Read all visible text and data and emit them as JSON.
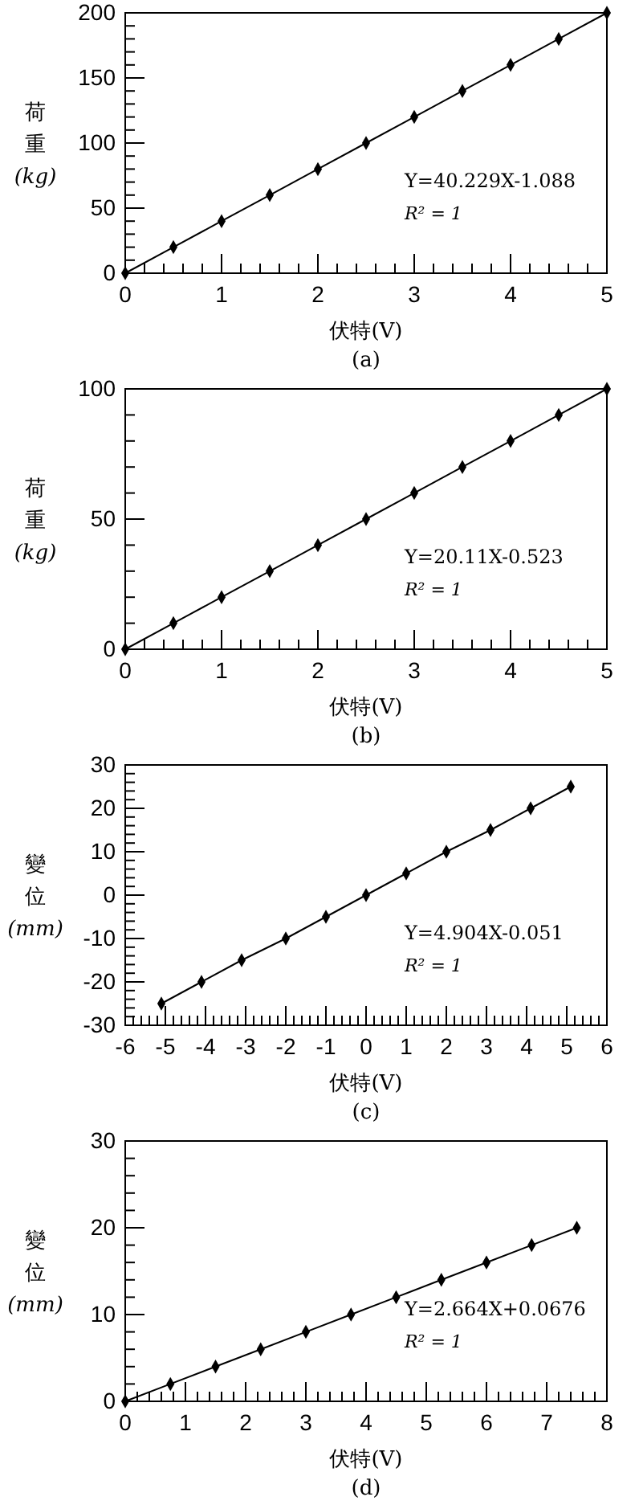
{
  "chart_data": [
    {
      "type": "line",
      "title": "(a)",
      "xlabel": "伏特(V)",
      "ylabel": "荷重(kg)",
      "marker": "diamond",
      "line_style": "solid",
      "annotations": [
        "Y=40.229X-1.088",
        "R² = 1"
      ],
      "xlim": [
        0,
        5
      ],
      "ylim": [
        0,
        200
      ],
      "xticks": [
        0,
        {
          "value": 0.2,
          "label": null
        },
        {
          "value": 0.4,
          "label": null
        },
        {
          "value": 0.6,
          "label": null
        },
        {
          "value": 0.8,
          "label": null
        },
        1,
        {
          "value": 1.2,
          "label": null
        },
        {
          "value": 1.4,
          "label": null
        },
        {
          "value": 1.6,
          "label": null
        },
        {
          "value": 1.8,
          "label": null
        },
        2,
        {
          "value": 2.2,
          "label": null
        },
        {
          "value": 2.4,
          "label": null
        },
        {
          "value": 2.6,
          "label": null
        },
        {
          "value": 2.8,
          "label": null
        },
        3,
        {
          "value": 3.2,
          "label": null
        },
        {
          "value": 3.4,
          "label": null
        },
        {
          "value": 3.6,
          "label": null
        },
        {
          "value": 3.8,
          "label": null
        },
        4,
        {
          "value": 4.2,
          "label": null
        },
        {
          "value": 4.4,
          "label": null
        },
        {
          "value": 4.6,
          "label": null
        },
        {
          "value": 4.8,
          "label": null
        },
        5
      ],
      "yticks": [
        0,
        {
          "value": 10,
          "label": null
        },
        {
          "value": 20,
          "label": null
        },
        {
          "value": 30,
          "label": null
        },
        {
          "value": 40,
          "label": null
        },
        50,
        {
          "value": 60,
          "label": null
        },
        {
          "value": 70,
          "label": null
        },
        {
          "value": 80,
          "label": null
        },
        {
          "value": 90,
          "label": null
        },
        100,
        {
          "value": 110,
          "label": null
        },
        {
          "value": 120,
          "label": null
        },
        {
          "value": 130,
          "label": null
        },
        {
          "value": 140,
          "label": null
        },
        150,
        {
          "value": 160,
          "label": null
        },
        {
          "value": 170,
          "label": null
        },
        {
          "value": 180,
          "label": null
        },
        {
          "value": 190,
          "label": null
        },
        200
      ],
      "series": [
        {
          "color": "#000000",
          "x": [
            0,
            0.5,
            1,
            1.5,
            2,
            2.5,
            3,
            3.5,
            4,
            4.5,
            5
          ],
          "values": [
            0,
            20,
            40,
            60,
            80,
            100,
            120,
            140,
            160,
            180,
            200
          ]
        }
      ]
    },
    {
      "type": "line",
      "title": "(b)",
      "xlabel": "伏特(V)",
      "ylabel": "荷重(kg)",
      "marker": "diamond",
      "line_style": "solid",
      "annotations": [
        "Y=20.11X-0.523",
        "R² = 1"
      ],
      "xlim": [
        0,
        5
      ],
      "ylim": [
        0,
        100
      ],
      "xticks": [
        0,
        {
          "value": 0.2,
          "label": null
        },
        {
          "value": 0.4,
          "label": null
        },
        {
          "value": 0.6,
          "label": null
        },
        {
          "value": 0.8,
          "label": null
        },
        1,
        {
          "value": 1.2,
          "label": null
        },
        {
          "value": 1.4,
          "label": null
        },
        {
          "value": 1.6,
          "label": null
        },
        {
          "value": 1.8,
          "label": null
        },
        2,
        {
          "value": 2.2,
          "label": null
        },
        {
          "value": 2.4,
          "label": null
        },
        {
          "value": 2.6,
          "label": null
        },
        {
          "value": 2.8,
          "label": null
        },
        3,
        {
          "value": 3.2,
          "label": null
        },
        {
          "value": 3.4,
          "label": null
        },
        {
          "value": 3.6,
          "label": null
        },
        {
          "value": 3.8,
          "label": null
        },
        4,
        {
          "value": 4.2,
          "label": null
        },
        {
          "value": 4.4,
          "label": null
        },
        {
          "value": 4.6,
          "label": null
        },
        {
          "value": 4.8,
          "label": null
        },
        5
      ],
      "yticks": [
        0,
        {
          "value": 10,
          "label": null
        },
        {
          "value": 20,
          "label": null
        },
        {
          "value": 30,
          "label": null
        },
        {
          "value": 40,
          "label": null
        },
        50,
        {
          "value": 60,
          "label": null
        },
        {
          "value": 70,
          "label": null
        },
        {
          "value": 80,
          "label": null
        },
        {
          "value": 90,
          "label": null
        },
        100
      ],
      "series": [
        {
          "color": "#000000",
          "x": [
            0,
            0.5,
            1,
            1.5,
            2,
            2.5,
            3,
            3.5,
            4,
            4.5,
            5
          ],
          "values": [
            0,
            10,
            20,
            30,
            40,
            50,
            60,
            70,
            80,
            90,
            100
          ]
        }
      ]
    },
    {
      "type": "line",
      "title": "(c)",
      "xlabel": "伏特(V)",
      "ylabel": "變位(mm)",
      "marker": "diamond",
      "line_style": "solid",
      "annotations": [
        "Y=4.904X-0.051",
        "R² = 1"
      ],
      "xlim": [
        -6,
        6
      ],
      "ylim": [
        -30,
        30
      ],
      "xticks": [
        -6,
        {
          "value": -5.8,
          "label": null
        },
        {
          "value": -5.6,
          "label": null
        },
        {
          "value": -5.4,
          "label": null
        },
        {
          "value": -5.2,
          "label": null
        },
        -5,
        {
          "value": -4.8,
          "label": null
        },
        {
          "value": -4.6,
          "label": null
        },
        {
          "value": -4.4,
          "label": null
        },
        {
          "value": -4.2,
          "label": null
        },
        -4,
        {
          "value": -3.8,
          "label": null
        },
        {
          "value": -3.6,
          "label": null
        },
        {
          "value": -3.4,
          "label": null
        },
        {
          "value": -3.2,
          "label": null
        },
        -3,
        {
          "value": -2.8,
          "label": null
        },
        {
          "value": -2.6,
          "label": null
        },
        {
          "value": -2.4,
          "label": null
        },
        {
          "value": -2.2,
          "label": null
        },
        -2,
        {
          "value": -1.8,
          "label": null
        },
        {
          "value": -1.6,
          "label": null
        },
        {
          "value": -1.4,
          "label": null
        },
        {
          "value": -1.2,
          "label": null
        },
        -1,
        {
          "value": -0.8,
          "label": null
        },
        {
          "value": -0.6,
          "label": null
        },
        {
          "value": -0.4,
          "label": null
        },
        {
          "value": -0.2,
          "label": null
        },
        0,
        {
          "value": 0.2,
          "label": null
        },
        {
          "value": 0.4,
          "label": null
        },
        {
          "value": 0.6,
          "label": null
        },
        {
          "value": 0.8,
          "label": null
        },
        1,
        {
          "value": 1.2,
          "label": null
        },
        {
          "value": 1.4,
          "label": null
        },
        {
          "value": 1.6,
          "label": null
        },
        {
          "value": 1.8,
          "label": null
        },
        2,
        {
          "value": 2.2,
          "label": null
        },
        {
          "value": 2.4,
          "label": null
        },
        {
          "value": 2.6,
          "label": null
        },
        {
          "value": 2.8,
          "label": null
        },
        3,
        {
          "value": 3.2,
          "label": null
        },
        {
          "value": 3.4,
          "label": null
        },
        {
          "value": 3.6,
          "label": null
        },
        {
          "value": 3.8,
          "label": null
        },
        4,
        {
          "value": 4.2,
          "label": null
        },
        {
          "value": 4.4,
          "label": null
        },
        {
          "value": 4.6,
          "label": null
        },
        {
          "value": 4.8,
          "label": null
        },
        5,
        {
          "value": 5.2,
          "label": null
        },
        {
          "value": 5.4,
          "label": null
        },
        {
          "value": 5.6,
          "label": null
        },
        {
          "value": 5.8,
          "label": null
        },
        6
      ],
      "yticks": [
        -30,
        {
          "value": -28,
          "label": null
        },
        {
          "value": -26,
          "label": null
        },
        {
          "value": -24,
          "label": null
        },
        {
          "value": -22,
          "label": null
        },
        -20,
        {
          "value": -18,
          "label": null
        },
        {
          "value": -16,
          "label": null
        },
        {
          "value": -14,
          "label": null
        },
        {
          "value": -12,
          "label": null
        },
        -10,
        {
          "value": -8,
          "label": null
        },
        {
          "value": -6,
          "label": null
        },
        {
          "value": -4,
          "label": null
        },
        {
          "value": -2,
          "label": null
        },
        0,
        {
          "value": 2,
          "label": null
        },
        {
          "value": 4,
          "label": null
        },
        {
          "value": 6,
          "label": null
        },
        {
          "value": 8,
          "label": null
        },
        10,
        {
          "value": 12,
          "label": null
        },
        {
          "value": 14,
          "label": null
        },
        {
          "value": 16,
          "label": null
        },
        {
          "value": 18,
          "label": null
        },
        20,
        {
          "value": 22,
          "label": null
        },
        {
          "value": 24,
          "label": null
        },
        {
          "value": 26,
          "label": null
        },
        {
          "value": 28,
          "label": null
        },
        30
      ],
      "series": [
        {
          "color": "#000000",
          "x": [
            -5.1,
            -4.1,
            -3.1,
            -2,
            -1,
            0,
            1,
            2,
            3.1,
            4.1,
            5.1
          ],
          "values": [
            -25,
            -20,
            -15,
            -10,
            -5,
            0,
            5,
            10,
            15,
            20,
            25
          ]
        }
      ]
    },
    {
      "type": "line",
      "title": "(d)",
      "xlabel": "伏特(V)",
      "ylabel": "變位(mm)",
      "marker": "diamond",
      "line_style": "solid",
      "annotations": [
        "Y=2.664X+0.0676",
        "R² = 1"
      ],
      "xlim": [
        0,
        8
      ],
      "ylim": [
        0,
        30
      ],
      "xticks": [
        0,
        {
          "value": 0.2,
          "label": null
        },
        {
          "value": 0.4,
          "label": null
        },
        {
          "value": 0.6,
          "label": null
        },
        {
          "value": 0.8,
          "label": null
        },
        1,
        {
          "value": 1.2,
          "label": null
        },
        {
          "value": 1.4,
          "label": null
        },
        {
          "value": 1.6,
          "label": null
        },
        {
          "value": 1.8,
          "label": null
        },
        2,
        {
          "value": 2.2,
          "label": null
        },
        {
          "value": 2.4,
          "label": null
        },
        {
          "value": 2.6,
          "label": null
        },
        {
          "value": 2.8,
          "label": null
        },
        3,
        {
          "value": 3.2,
          "label": null
        },
        {
          "value": 3.4,
          "label": null
        },
        {
          "value": 3.6,
          "label": null
        },
        {
          "value": 3.8,
          "label": null
        },
        4,
        {
          "value": 4.2,
          "label": null
        },
        {
          "value": 4.4,
          "label": null
        },
        {
          "value": 4.6,
          "label": null
        },
        {
          "value": 4.8,
          "label": null
        },
        5,
        {
          "value": 5.2,
          "label": null
        },
        {
          "value": 5.4,
          "label": null
        },
        {
          "value": 5.6,
          "label": null
        },
        {
          "value": 5.8,
          "label": null
        },
        6,
        {
          "value": 6.2,
          "label": null
        },
        {
          "value": 6.4,
          "label": null
        },
        {
          "value": 6.6,
          "label": null
        },
        {
          "value": 6.8,
          "label": null
        },
        7,
        {
          "value": 7.2,
          "label": null
        },
        {
          "value": 7.4,
          "label": null
        },
        {
          "value": 7.6,
          "label": null
        },
        {
          "value": 7.8,
          "label": null
        },
        8
      ],
      "yticks": [
        0,
        {
          "value": 2,
          "label": null
        },
        {
          "value": 4,
          "label": null
        },
        {
          "value": 6,
          "label": null
        },
        {
          "value": 8,
          "label": null
        },
        10,
        {
          "value": 12,
          "label": null
        },
        {
          "value": 14,
          "label": null
        },
        {
          "value": 16,
          "label": null
        },
        {
          "value": 18,
          "label": null
        },
        20,
        {
          "value": 22,
          "label": null
        },
        {
          "value": 24,
          "label": null
        },
        {
          "value": 26,
          "label": null
        },
        {
          "value": 28,
          "label": null
        },
        30
      ],
      "series": [
        {
          "color": "#000000",
          "x": [
            0,
            0.75,
            1.5,
            2.25,
            3,
            3.75,
            4.5,
            5.25,
            6,
            6.75,
            7.5
          ],
          "values": [
            0,
            2,
            4,
            6,
            8,
            10,
            12,
            14,
            16,
            18,
            20
          ]
        }
      ]
    }
  ]
}
